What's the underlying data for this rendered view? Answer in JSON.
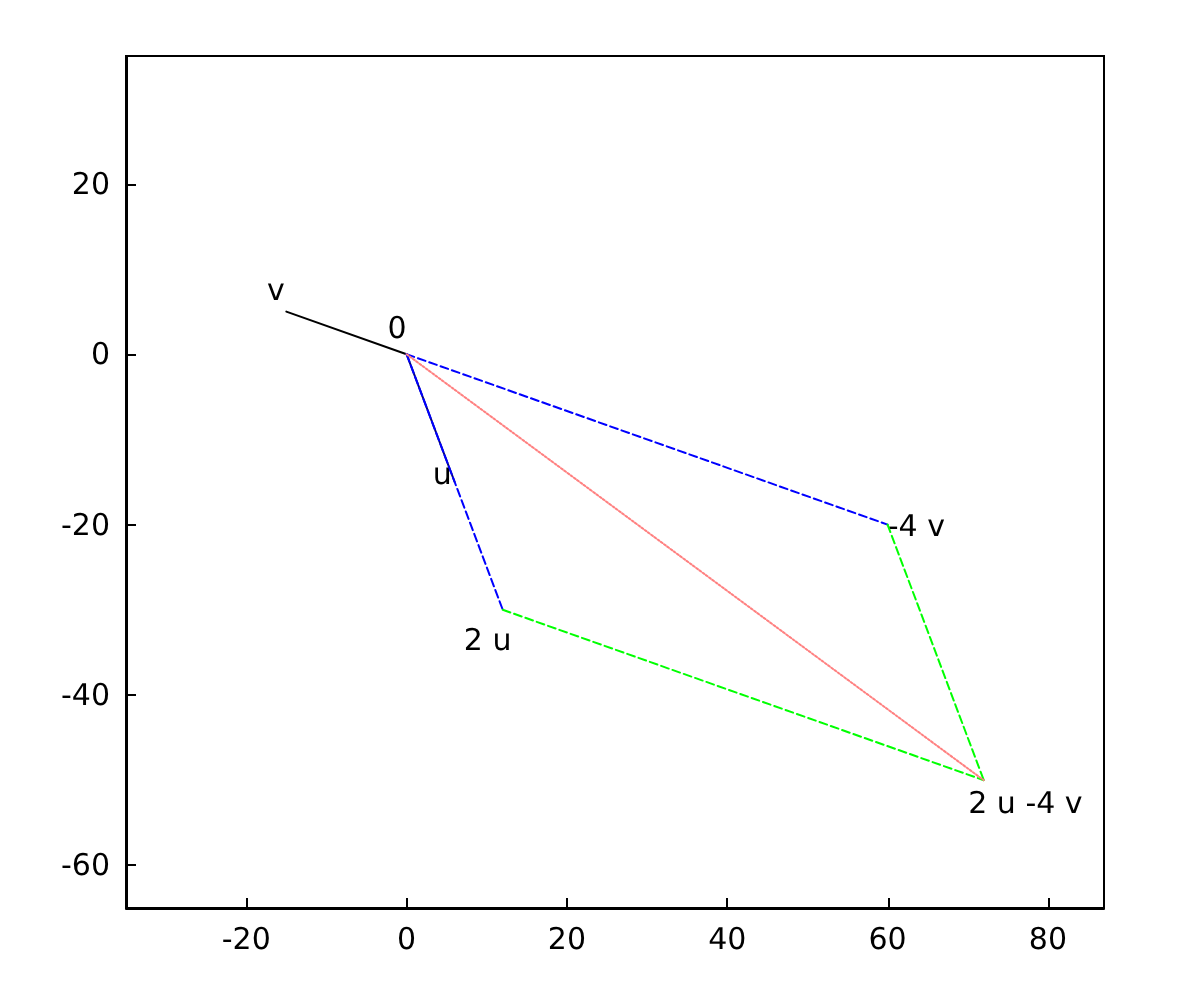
{
  "chart_data": {
    "type": "line",
    "xlim": [
      -35,
      87
    ],
    "ylim": [
      -65,
      35
    ],
    "xticks": [
      -20,
      0,
      20,
      40,
      60,
      80
    ],
    "yticks": [
      -60,
      -40,
      -20,
      0,
      20
    ],
    "grid": false,
    "marker": "none",
    "series": [
      {
        "color": "#000000",
        "line_style": "solid",
        "x": [
          0,
          -15
        ],
        "values": [
          0,
          5
        ]
      },
      {
        "color": "#000080",
        "line_style": "solid",
        "x": [
          0,
          6
        ],
        "values": [
          0,
          -15
        ]
      },
      {
        "color": "#0000ff",
        "line_style": "dashed",
        "x": [
          0,
          12
        ],
        "values": [
          0,
          -30
        ]
      },
      {
        "color": "#0000ff",
        "line_style": "dashed",
        "x": [
          0,
          60
        ],
        "values": [
          0,
          -20
        ]
      },
      {
        "color": "#00ff00",
        "line_style": "dashed",
        "x": [
          12,
          72
        ],
        "values": [
          -30,
          -50
        ]
      },
      {
        "color": "#00ff00",
        "line_style": "dashed",
        "x": [
          60,
          72
        ],
        "values": [
          -20,
          -50
        ]
      },
      {
        "color": "#ff8080",
        "line_style": "dotted",
        "x": [
          0,
          72
        ],
        "values": [
          0,
          -50
        ]
      }
    ],
    "annotations": [
      {
        "text": "v",
        "x": -15,
        "y": 5
      },
      {
        "text": "0",
        "x": 0,
        "y": 0
      },
      {
        "text": "u",
        "x": 6,
        "y": -15
      },
      {
        "text": "2 u",
        "x": 12,
        "y": -30
      },
      {
        "text": "-4 v",
        "x": 60,
        "y": -20
      },
      {
        "text": "2 u -4 v",
        "x": 72,
        "y": -50
      }
    ]
  }
}
